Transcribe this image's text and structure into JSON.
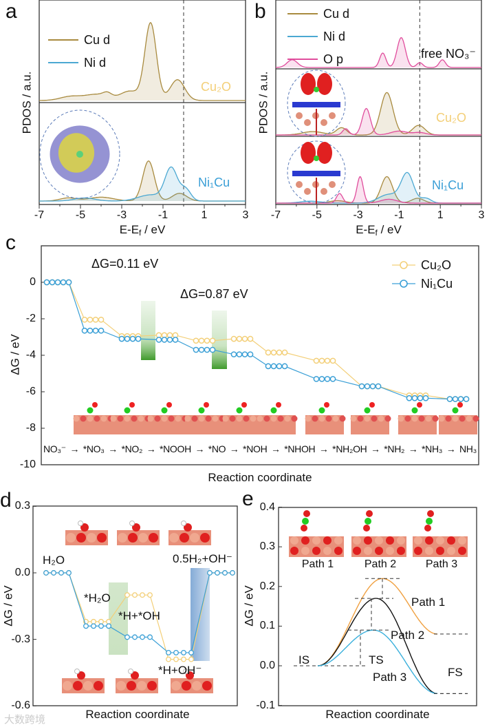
{
  "panels": {
    "a": {
      "letter": "a"
    },
    "b": {
      "letter": "b"
    },
    "c": {
      "letter": "c"
    },
    "d": {
      "letter": "d"
    },
    "e": {
      "letter": "e"
    }
  },
  "colors": {
    "cu_d": "#a88a3e",
    "ni_d": "#4ba8d2",
    "o_p": "#e04c9c",
    "cu2o": "#f3cf78",
    "ni1cu": "#3a9fd6",
    "path1": "#f0a040",
    "path2": "#111111",
    "path3": "#3ab0dc"
  },
  "watermark": "大数跨境",
  "chart_data": [
    {
      "id": "a",
      "type": "area",
      "ylabel": "PDOS / a.u.",
      "xlabel": {
        "pre": "E-E",
        "sub": "f",
        "post": " / eV"
      },
      "xlim": [
        -7,
        3
      ],
      "xticks": [
        "-7",
        "-5",
        "-3",
        "-1",
        "1",
        "3"
      ],
      "fermi_level": 0,
      "legend": [
        {
          "name": "Cu d",
          "color_key": "cu_d"
        },
        {
          "name": "Ni d",
          "color_key": "ni_d"
        }
      ],
      "subplots": [
        {
          "label": "Cu₂O",
          "label_color_key": "cu2o",
          "series": [
            {
              "name": "Cu d",
              "color_key": "cu_d",
              "peaks": [
                [
                  -1.6,
                  1.0,
                  0.28
                ],
                [
                  -0.3,
                  0.27,
                  0.35
                ],
                [
                  -4.2,
                  0.08,
                  0.6
                ],
                [
                  -5.5,
                  0.05,
                  0.5
                ],
                [
                  -2.6,
                  0.12,
                  0.45
                ],
                [
                  -3.7,
                  0.05,
                  0.2
                ]
              ]
            }
          ]
        },
        {
          "label": "Ni₁Cu",
          "label_color_key": "ni1cu",
          "series": [
            {
              "name": "Cu d",
              "color_key": "cu_d",
              "peaks": [
                [
                  -1.7,
                  0.52,
                  0.28
                ],
                [
                  -0.2,
                  0.1,
                  0.35
                ],
                [
                  -4.0,
                  0.05,
                  0.6
                ],
                [
                  -5.6,
                  0.04,
                  0.4
                ]
              ]
            },
            {
              "name": "Ni d",
              "color_key": "ni_d",
              "peaks": [
                [
                  -0.6,
                  0.42,
                  0.3
                ],
                [
                  0.1,
                  0.15,
                  0.25
                ],
                [
                  -1.6,
                  0.08,
                  0.6
                ],
                [
                  -4.8,
                  0.04,
                  0.5
                ]
              ]
            }
          ]
        }
      ]
    },
    {
      "id": "b",
      "type": "area",
      "ylabel": "PDOS / a.u.",
      "xlabel": {
        "pre": "E-E",
        "sub": "f",
        "post": " / eV"
      },
      "xlim": [
        -7,
        3
      ],
      "xticks": [
        "-7",
        "-5",
        "-3",
        "-1",
        "1",
        "3"
      ],
      "fermi_level": 0,
      "legend": [
        {
          "name": "Cu d",
          "color_key": "cu_d"
        },
        {
          "name": "Ni d",
          "color_key": "ni_d"
        },
        {
          "name": "O p",
          "color_key": "o_p"
        }
      ],
      "subplots": [
        {
          "label": "free NO₃⁻",
          "label_color_key": "path2",
          "series": [
            {
              "name": "O p",
              "color_key": "o_p",
              "peaks": [
                [
                  -6.2,
                  0.16,
                  0.25
                ],
                [
                  -1.8,
                  0.3,
                  0.15
                ],
                [
                  -0.9,
                  0.62,
                  0.2
                ],
                [
                  0.0,
                  0.1,
                  0.15
                ],
                [
                  1.1,
                  0.16,
                  0.15
                ]
              ]
            }
          ]
        },
        {
          "label": "Cu₂O",
          "label_color_key": "cu2o",
          "series": [
            {
              "name": "Cu d",
              "color_key": "cu_d",
              "peaks": [
                [
                  -1.6,
                  0.88,
                  0.3
                ],
                [
                  -0.05,
                  0.2,
                  0.3
                ],
                [
                  -3.8,
                  0.15,
                  0.25
                ],
                [
                  -5.2,
                  0.07,
                  0.5
                ]
              ]
            },
            {
              "name": "O p",
              "color_key": "o_p",
              "peaks": [
                [
                  -2.6,
                  0.55,
                  0.2
                ],
                [
                  -3.6,
                  0.13,
                  0.15
                ],
                [
                  -1.0,
                  0.08,
                  0.4
                ],
                [
                  0.0,
                  0.05,
                  0.3
                ]
              ]
            }
          ]
        },
        {
          "label": "Ni₁Cu",
          "label_color_key": "ni1cu",
          "series": [
            {
              "name": "Cu d",
              "color_key": "cu_d",
              "peaks": [
                [
                  -1.6,
                  0.55,
                  0.28
                ],
                [
                  -0.1,
                  0.1,
                  0.3
                ],
                [
                  -4.0,
                  0.05,
                  0.4
                ]
              ]
            },
            {
              "name": "Ni d",
              "color_key": "ni_d",
              "peaks": [
                [
                  -0.6,
                  0.6,
                  0.3
                ],
                [
                  -1.5,
                  0.18,
                  0.5
                ],
                [
                  0.3,
                  0.1,
                  0.25
                ],
                [
                  -5.3,
                  0.04,
                  0.5
                ]
              ]
            },
            {
              "name": "O p",
              "color_key": "o_p",
              "peaks": [
                [
                  -2.9,
                  0.55,
                  0.15
                ],
                [
                  -3.9,
                  0.2,
                  0.15
                ],
                [
                  -1.5,
                  0.08,
                  0.4
                ]
              ]
            }
          ]
        }
      ]
    },
    {
      "id": "c",
      "type": "line",
      "ylabel": "ΔG / eV",
      "xlabel": "Reaction coordinate",
      "ylim": [
        -10,
        0
      ],
      "yticks": [
        "0",
        "-2",
        "-4",
        "-6",
        "-8",
        "-10"
      ],
      "categories": [
        "NO₃⁻",
        "*NO₃",
        "*NO₂",
        "*NOOH",
        "*NO",
        "*NOH",
        "*NHOH",
        "*NH₂OH",
        "*NH₂",
        "*NH₃",
        "NH₃"
      ],
      "series": [
        {
          "name": "Cu₂O",
          "color_key": "cu2o",
          "values": [
            0,
            -2.05,
            -2.95,
            -2.9,
            -3.2,
            -3.1,
            -3.85,
            -4.3,
            -5.7,
            -6.2,
            -6.4
          ]
        },
        {
          "name": "Ni₁Cu",
          "color_key": "ni1cu",
          "values": [
            0,
            -2.65,
            -3.1,
            -3.15,
            -3.7,
            -3.95,
            -4.6,
            -5.3,
            -5.7,
            -6.35,
            -6.4
          ]
        }
      ],
      "annotations": [
        "ΔG=0.11 eV",
        "ΔG=0.87 eV"
      ],
      "legend_position": "top-right"
    },
    {
      "id": "d",
      "type": "line",
      "ylabel": "ΔG / eV",
      "xlabel": "Reaction coordinate",
      "ylim": [
        -0.6,
        0.3
      ],
      "yticks": [
        "0.3",
        "0.0",
        "-0.3",
        "-0.6"
      ],
      "categories": [
        "H₂O",
        "*H₂O",
        "*H+*OH",
        "*H+OH⁻",
        "0.5H₂+OH⁻"
      ],
      "series": [
        {
          "name": "Cu₂O",
          "color_key": "cu2o",
          "values": [
            0,
            -0.22,
            -0.1,
            -0.39,
            0
          ]
        },
        {
          "name": "Ni₁Cu",
          "color_key": "ni1cu",
          "values": [
            0,
            -0.24,
            -0.29,
            -0.36,
            0
          ]
        }
      ]
    },
    {
      "id": "e",
      "type": "line",
      "ylabel": "ΔG / eV",
      "xlabel": "Reaction coordinate",
      "ylim": [
        -0.1,
        0.4
      ],
      "yticks": [
        "0.4",
        "0.3",
        "0.2",
        "0.1",
        "0.0",
        "-0.1"
      ],
      "state_labels": [
        "IS",
        "TS",
        "FS"
      ],
      "structure_labels": [
        "Path 1",
        "Path 2",
        "Path 3"
      ],
      "series": [
        {
          "name": "Path 1",
          "color_key": "path1",
          "IS": 0,
          "TS": 0.22,
          "FS": 0.08
        },
        {
          "name": "Path 2",
          "color_key": "path2",
          "IS": 0,
          "TS": 0.17,
          "FS": -0.07
        },
        {
          "name": "Path 3",
          "color_key": "path3",
          "IS": 0,
          "TS": 0.09,
          "FS": -0.07
        }
      ]
    }
  ]
}
